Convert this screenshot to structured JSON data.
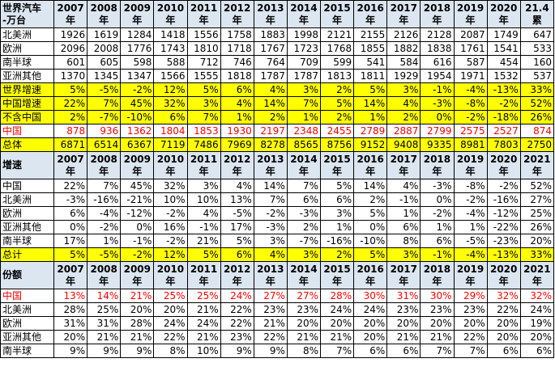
{
  "sections": [
    {
      "header": "世界汽车\n-万台",
      "columns": [
        "2007\n年",
        "2008\n年",
        "2009\n年",
        "2010\n年",
        "2011\n年",
        "2012\n年",
        "2013\n年",
        "2014\n年",
        "2015\n年",
        "2016\n年",
        "2017\n年",
        "2018\n年",
        "2019\n年",
        "2020\n年",
        "21.4\n累"
      ],
      "rows": [
        {
          "label": "北美洲",
          "values": [
            1926,
            1619,
            1284,
            1418,
            1556,
            1758,
            1883,
            1998,
            2121,
            2155,
            2126,
            2128,
            2087,
            1749,
            647
          ]
        },
        {
          "label": "欧洲",
          "values": [
            2096,
            2008,
            1776,
            1743,
            1810,
            1718,
            1767,
            1723,
            1768,
            1855,
            1882,
            1838,
            1761,
            1541,
            533
          ]
        },
        {
          "label": "南半球",
          "values": [
            601,
            605,
            598,
            588,
            712,
            746,
            764,
            709,
            599,
            541,
            584,
            616,
            587,
            454,
            160
          ]
        },
        {
          "label": "亚洲其他",
          "values": [
            1370,
            1345,
            1347,
            1566,
            1555,
            1818,
            1787,
            1787,
            1813,
            1811,
            1929,
            1954,
            1971,
            1532,
            537
          ]
        },
        {
          "label": "世界增速",
          "values": [
            "5%",
            "-5%",
            "-2%",
            "12%",
            "5%",
            "6%",
            "4%",
            "3%",
            "2%",
            "5%",
            "3%",
            "-1%",
            "-4%",
            "-13%",
            "33%"
          ]
        },
        {
          "label": "中国增速",
          "values": [
            "22%",
            "7%",
            "45%",
            "32%",
            "3%",
            "4%",
            "14%",
            "7%",
            "5%",
            "14%",
            "4%",
            "-3%",
            "-8%",
            "-2%",
            "52%"
          ]
        },
        {
          "label": "不含中国",
          "values": [
            "2%",
            "-7%",
            "-10%",
            "6%",
            "7%",
            "1%",
            "2%",
            "1%",
            "2%",
            "1%",
            "2%",
            "0%",
            "-2%",
            "-18%",
            "26%"
          ]
        },
        {
          "label": "中国",
          "values": [
            878,
            936,
            1362,
            1804,
            1853,
            1930,
            2197,
            2348,
            2455,
            2789,
            2887,
            2799,
            2575,
            2527,
            874
          ]
        },
        {
          "label": "总体",
          "values": [
            6871,
            6514,
            6367,
            7119,
            7486,
            7969,
            8278,
            8565,
            8756,
            9152,
            9408,
            9335,
            8981,
            7803,
            2750
          ]
        }
      ]
    },
    {
      "header": "增速",
      "columns": [
        "2007\n年",
        "2008\n年",
        "2009\n年",
        "2010\n年",
        "2011\n年",
        "2012\n年",
        "2013\n年",
        "2014\n年",
        "2015\n年",
        "2016\n年",
        "2017\n年",
        "2018\n年",
        "2019\n年",
        "2020\n年",
        "2021\n年"
      ],
      "rows": [
        {
          "label": "中国",
          "values": [
            "22%",
            "7%",
            "45%",
            "32%",
            "3%",
            "4%",
            "14%",
            "7%",
            "5%",
            "14%",
            "4%",
            "-3%",
            "-8%",
            "-2%",
            "52%"
          ]
        },
        {
          "label": "北美洲",
          "values": [
            "-3%",
            "-16%",
            "-21%",
            "10%",
            "10%",
            "13%",
            "7%",
            "6%",
            "6%",
            "2%",
            "-1%",
            "0%",
            "-2%",
            "-16%",
            "27%"
          ]
        },
        {
          "label": "欧洲",
          "values": [
            "6%",
            "-4%",
            "-12%",
            "-2%",
            "4%",
            "-5%",
            "-2%",
            "-3%",
            "3%",
            "5%",
            "1%",
            "-2%",
            "-4%",
            "-12%",
            "25%"
          ]
        },
        {
          "label": "亚洲其他",
          "values": [
            "0%",
            "-2%",
            "0%",
            "16%",
            "-1%",
            "17%",
            "-3%",
            "2%",
            "1%",
            "0%",
            "6%",
            "1%",
            "1%",
            "-22%",
            "26%"
          ]
        },
        {
          "label": "南半球",
          "values": [
            "17%",
            "1%",
            "-1%",
            "-2%",
            "21%",
            "5%",
            "3%",
            "-7%",
            "-16%",
            "-10%",
            "8%",
            "6%",
            "-5%",
            "-23%",
            "20%"
          ]
        },
        {
          "label": "总计",
          "values": [
            "5%",
            "-5%",
            "-2%",
            "12%",
            "5%",
            "6%",
            "4%",
            "3%",
            "2%",
            "5%",
            "3%",
            "-1%",
            "-4%",
            "-13%",
            "33%"
          ]
        }
      ]
    },
    {
      "header": "份额",
      "columns": [
        "2007\n年",
        "2008\n年",
        "2009\n年",
        "2010\n年",
        "2011\n年",
        "2012\n年",
        "2013\n年",
        "2014\n年",
        "2015\n年",
        "2016\n年",
        "2017\n年",
        "2018\n年",
        "2019\n年",
        "2020\n年",
        "2021\n年"
      ],
      "rows": [
        {
          "label": "中国",
          "values": [
            "13%",
            "14%",
            "21%",
            "25%",
            "25%",
            "24%",
            "27%",
            "27%",
            "28%",
            "30%",
            "31%",
            "30%",
            "29%",
            "32%",
            "32%"
          ]
        },
        {
          "label": "北美洲",
          "values": [
            "28%",
            "25%",
            "20%",
            "20%",
            "21%",
            "22%",
            "23%",
            "23%",
            "24%",
            "24%",
            "23%",
            "23%",
            "23%",
            "22%",
            "24%"
          ]
        },
        {
          "label": "欧洲",
          "values": [
            "31%",
            "31%",
            "28%",
            "24%",
            "24%",
            "22%",
            "21%",
            "20%",
            "20%",
            "20%",
            "20%",
            "20%",
            "20%",
            "20%",
            "19%"
          ]
        },
        {
          "label": "亚洲其他",
          "values": [
            "20%",
            "21%",
            "21%",
            "22%",
            "21%",
            "23%",
            "22%",
            "21%",
            "21%",
            "20%",
            "21%",
            "21%",
            "22%",
            "20%",
            "20%"
          ]
        },
        {
          "label": "南半球",
          "values": [
            "9%",
            "9%",
            "9%",
            "8%",
            "10%",
            "9%",
            "9%",
            "8%",
            "7%",
            "6%",
            "6%",
            "7%",
            "7%",
            "6%",
            "6%"
          ]
        }
      ]
    }
  ]
}
